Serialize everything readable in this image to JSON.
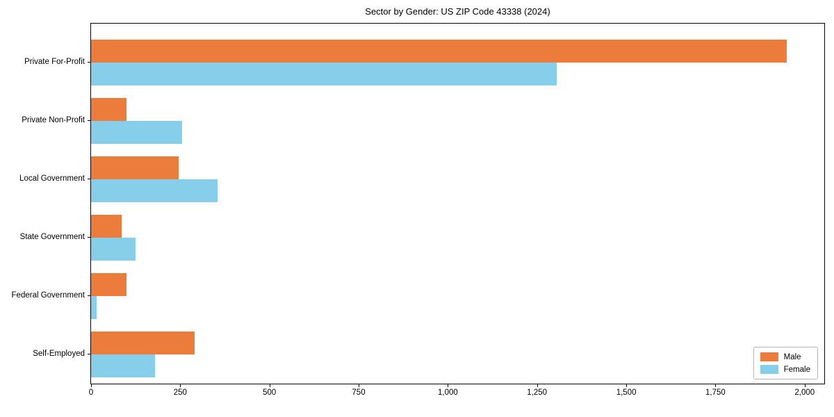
{
  "chart_data": {
    "type": "bar",
    "orientation": "horizontal",
    "title": "Sector by Gender: US ZIP Code 43338 (2024)",
    "xlabel": "",
    "ylabel": "",
    "categories": [
      "Private For-Profit",
      "Private Non-Profit",
      "Local Government",
      "State Government",
      "Federal Government",
      "Self-Employed"
    ],
    "series": [
      {
        "name": "Male",
        "color": "#EC7C3C",
        "values": [
          1950,
          100,
          245,
          85,
          100,
          290
        ]
      },
      {
        "name": "Female",
        "color": "#87CEEB",
        "values": [
          1305,
          255,
          355,
          125,
          15,
          180
        ]
      }
    ],
    "xlim": [
      0,
      2055
    ],
    "xticks": [
      0,
      250,
      500,
      750,
      1000,
      1250,
      1500,
      1750,
      2000
    ],
    "xtick_labels": [
      "0",
      "250",
      "500",
      "750",
      "1,000",
      "1,250",
      "1,500",
      "1,750",
      "2,000"
    ],
    "grid": false,
    "legend_position": "lower right",
    "legend_labels": [
      "Male",
      "Female"
    ]
  },
  "colors": {
    "male": "#EC7C3C",
    "female": "#87CEEB",
    "spine": "#000000",
    "legend_border": "#b4b4b4",
    "background": "#ffffff"
  }
}
